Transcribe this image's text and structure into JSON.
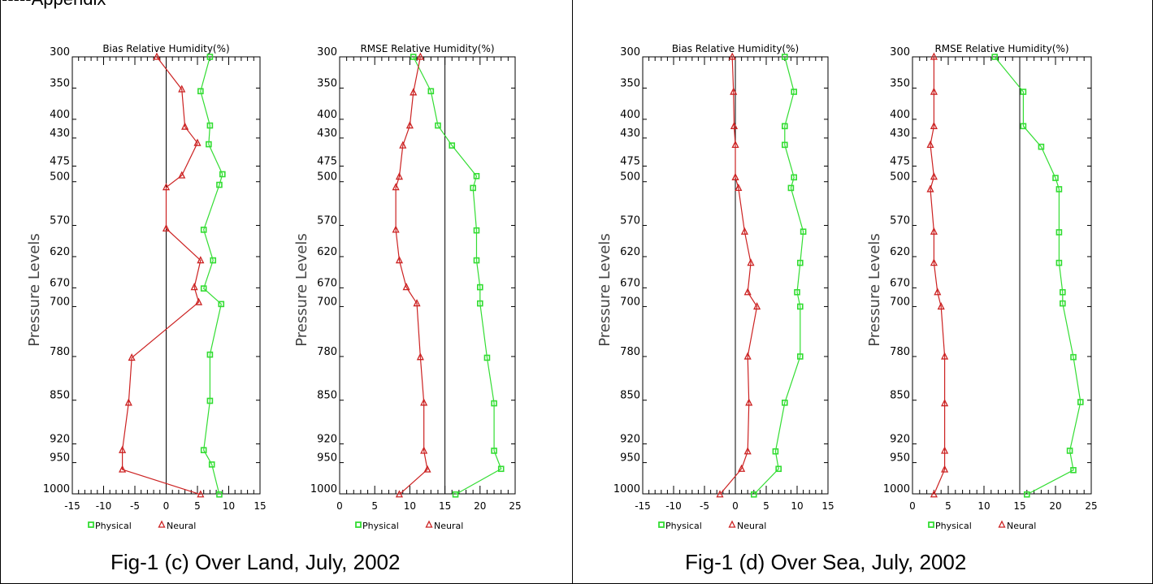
{
  "top_text": "-----Appendix",
  "panels": [
    {
      "caption": "Fig-1 (c) Over Land, July, 2002",
      "ylabel": "Pressure Levels",
      "levels": [
        300,
        350,
        400,
        430,
        475,
        500,
        570,
        620,
        670,
        700,
        780,
        850,
        920,
        950,
        1000
      ],
      "legend": {
        "physical": "Physical",
        "neural": "Neural"
      }
    },
    {
      "caption": "Fig-1 (d) Over Sea, July, 2002",
      "ylabel": "Pressure Levels",
      "levels": [
        300,
        350,
        400,
        430,
        475,
        500,
        570,
        620,
        670,
        700,
        780,
        850,
        920,
        950,
        1000
      ],
      "legend": {
        "physical": "Physical",
        "neural": "Neural"
      }
    }
  ],
  "chart_data": [
    {
      "type": "line",
      "title": "Bias Relative Humidity(%)",
      "xlabel": "",
      "ylabel": "Pressure Levels",
      "xlim": [
        -15,
        15
      ],
      "ylim": [
        1000,
        300
      ],
      "xticks": [
        -15,
        -10,
        -5,
        0,
        5,
        10,
        15
      ],
      "ref_line": 0,
      "series": [
        {
          "name": "Physical",
          "color": "#33dd33",
          "marker": "square",
          "points": [
            [
              7,
              300
            ],
            [
              5.5,
              355
            ],
            [
              7,
              410
            ],
            [
              6.8,
              440
            ],
            [
              9,
              488
            ],
            [
              8.5,
              505
            ],
            [
              6,
              577
            ],
            [
              7.5,
              626
            ],
            [
              6,
              671
            ],
            [
              8.8,
              696
            ],
            [
              7,
              777
            ],
            [
              7,
              851
            ],
            [
              6,
              930
            ],
            [
              7.3,
              953
            ],
            [
              8.5,
              1001
            ]
          ]
        },
        {
          "name": "Neural",
          "color": "#cc2222",
          "marker": "triangle",
          "points": [
            [
              -1.5,
              300
            ],
            [
              2.5,
              352
            ],
            [
              3,
              412
            ],
            [
              5,
              438
            ],
            [
              2.5,
              490
            ],
            [
              0,
              509
            ],
            [
              0,
              575
            ],
            [
              5.5,
              626
            ],
            [
              4.5,
              669
            ],
            [
              5.2,
              693
            ],
            [
              -5.5,
              782
            ],
            [
              -6,
              854
            ],
            [
              -7,
              930
            ],
            [
              -7,
              961
            ],
            [
              5.5,
              1001
            ]
          ]
        }
      ]
    },
    {
      "type": "line",
      "title": "RMSE Relative Humidity(%)",
      "xlabel": "",
      "ylabel": "Pressure Levels",
      "xlim": [
        0,
        25
      ],
      "ylim": [
        1000,
        300
      ],
      "xticks": [
        0,
        5,
        10,
        15,
        20,
        25
      ],
      "ref_line": 15,
      "series": [
        {
          "name": "Physical",
          "color": "#33dd33",
          "marker": "square",
          "points": [
            [
              10.5,
              300
            ],
            [
              13,
              355
            ],
            [
              14,
              410
            ],
            [
              16,
              442
            ],
            [
              19.5,
              491
            ],
            [
              19,
              510
            ],
            [
              19.5,
              578
            ],
            [
              19.5,
              626
            ],
            [
              20,
              669
            ],
            [
              20,
              695
            ],
            [
              21,
              782
            ],
            [
              22,
              855
            ],
            [
              22,
              931
            ],
            [
              23,
              960
            ],
            [
              16.5,
              1001
            ]
          ]
        },
        {
          "name": "Neural",
          "color": "#cc2222",
          "marker": "triangle",
          "points": [
            [
              11.5,
              300
            ],
            [
              10.5,
              357
            ],
            [
              10,
              410
            ],
            [
              9,
              442
            ],
            [
              8.5,
              492
            ],
            [
              8,
              509
            ],
            [
              8,
              577
            ],
            [
              8.5,
              626
            ],
            [
              9.5,
              669
            ],
            [
              11,
              695
            ],
            [
              11.5,
              781
            ],
            [
              12,
              854
            ],
            [
              12,
              931
            ],
            [
              12.5,
              961
            ],
            [
              8.5,
              1001
            ]
          ]
        }
      ]
    },
    {
      "type": "line",
      "title": "Bias Relative Humidity(%)",
      "xlabel": "",
      "ylabel": "Pressure Levels",
      "xlim": [
        -15,
        15
      ],
      "ylim": [
        1000,
        300
      ],
      "xticks": [
        -15,
        -10,
        -5,
        0,
        5,
        10,
        15
      ],
      "ref_line": 0,
      "series": [
        {
          "name": "Physical",
          "color": "#33dd33",
          "marker": "square",
          "points": [
            [
              8,
              300
            ],
            [
              9.5,
              356
            ],
            [
              8,
              411
            ],
            [
              8,
              441
            ],
            [
              9.5,
              493
            ],
            [
              9,
              510
            ],
            [
              11,
              580
            ],
            [
              10.5,
              630
            ],
            [
              10,
              677
            ],
            [
              10.5,
              700
            ],
            [
              10.5,
              780
            ],
            [
              8,
              854
            ],
            [
              6.5,
              932
            ],
            [
              7,
              960
            ],
            [
              3,
              1001
            ]
          ]
        },
        {
          "name": "Neural",
          "color": "#cc2222",
          "marker": "triangle",
          "points": [
            [
              -0.5,
              300
            ],
            [
              -0.3,
              356
            ],
            [
              -0.2,
              411
            ],
            [
              0,
              441
            ],
            [
              0,
              493
            ],
            [
              0.5,
              510
            ],
            [
              1.5,
              580
            ],
            [
              2.5,
              630
            ],
            [
              2,
              677
            ],
            [
              3.5,
              700
            ],
            [
              2,
              780
            ],
            [
              2.2,
              854
            ],
            [
              2,
              932
            ],
            [
              1,
              960
            ],
            [
              -2.5,
              1001
            ]
          ]
        }
      ]
    },
    {
      "type": "line",
      "title": "RMSE Relative Humidity(%)",
      "xlabel": "",
      "ylabel": "Pressure Levels",
      "xlim": [
        0,
        25
      ],
      "ylim": [
        1000,
        300
      ],
      "xticks": [
        0,
        5,
        10,
        15,
        20,
        25
      ],
      "ref_line": 15,
      "series": [
        {
          "name": "Physical",
          "color": "#33dd33",
          "marker": "square",
          "points": [
            [
              11.5,
              300
            ],
            [
              15.5,
              356
            ],
            [
              15.5,
              411
            ],
            [
              18,
              444
            ],
            [
              20,
              494
            ],
            [
              20.5,
              512
            ],
            [
              20.5,
              581
            ],
            [
              20.5,
              630
            ],
            [
              21,
              677
            ],
            [
              21,
              695
            ],
            [
              22.5,
              781
            ],
            [
              23.5,
              853
            ],
            [
              22,
              931
            ],
            [
              22.5,
              962
            ],
            [
              16,
              1001
            ]
          ]
        },
        {
          "name": "Neural",
          "color": "#cc2222",
          "marker": "triangle",
          "points": [
            [
              3,
              300
            ],
            [
              3,
              356
            ],
            [
              3,
              411
            ],
            [
              2.5,
              441
            ],
            [
              3,
              492
            ],
            [
              2.5,
              512
            ],
            [
              3,
              580
            ],
            [
              3,
              630
            ],
            [
              3.5,
              677
            ],
            [
              4,
              700
            ],
            [
              4.5,
              780
            ],
            [
              4.5,
              855
            ],
            [
              4.5,
              931
            ],
            [
              4.5,
              961
            ],
            [
              3,
              1001
            ]
          ]
        }
      ]
    }
  ]
}
